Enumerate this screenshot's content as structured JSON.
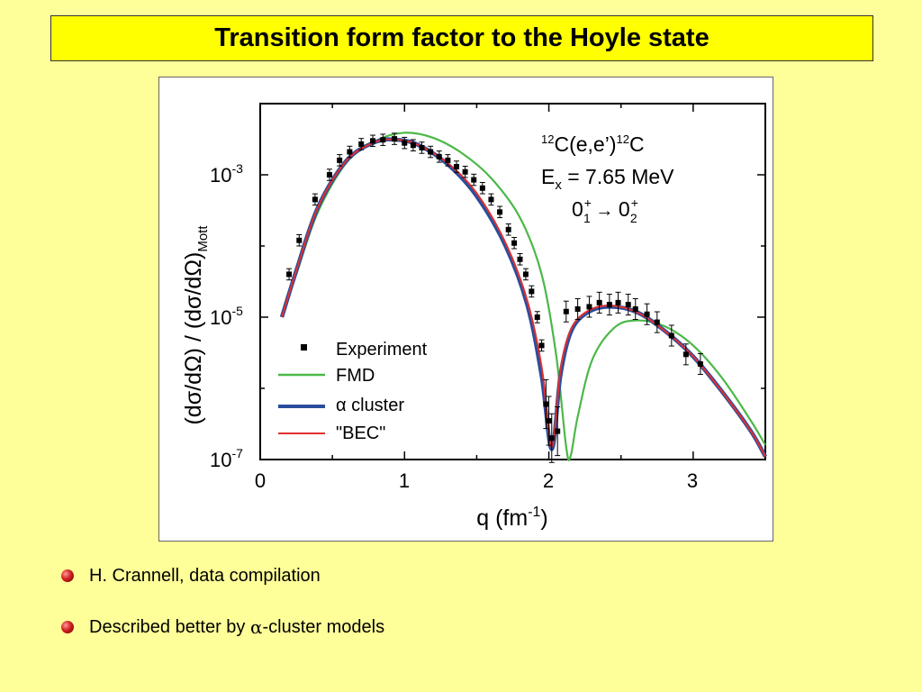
{
  "slide": {
    "title": "Transition form factor to the Hoyle state",
    "bullets": [
      {
        "prefix": "H. Crannell, data compilation",
        "symbol": "",
        "suffix": ""
      },
      {
        "prefix": "Described better by ",
        "symbol": "α",
        "suffix": "-cluster models"
      }
    ]
  },
  "chart_data": {
    "type": "line",
    "xlabel": "q (fm⁻¹)",
    "ylabel": "(dσ/dΩ) / (dσ/dΩ)Mott",
    "xlim": [
      0,
      3.5
    ],
    "ylim": [
      1e-07,
      0.01
    ],
    "yscale": "log",
    "xticks": [
      "0",
      "1",
      "2",
      "3"
    ],
    "yticks": [
      "10-3",
      "10-5",
      "10-7"
    ],
    "annotation": {
      "reaction": "12C(e,e')12C",
      "energy": "Ex = 7.65 MeV",
      "transition": "0+1 → 0+2"
    },
    "legend_position": "bottom-left",
    "colors": {
      "experiment": "#000000",
      "fmd": "#4cb848",
      "alpha": "#2a4d9c",
      "bec": "#e03030"
    },
    "series": [
      {
        "name": "FMD",
        "x": [
          0.15,
          0.25,
          0.4,
          0.6,
          0.8,
          1.0,
          1.2,
          1.4,
          1.6,
          1.8,
          1.95,
          2.05,
          2.12,
          2.15,
          2.2,
          2.3,
          2.45,
          2.6,
          2.8,
          3.0,
          3.2,
          3.4,
          3.5
        ],
        "y": [
          1e-05,
          4e-05,
          0.0003,
          0.0015,
          0.003,
          0.0039,
          0.0033,
          0.002,
          0.0009,
          0.00025,
          4e-05,
          3e-06,
          1.5e-07,
          1.1e-07,
          4e-07,
          2.5e-06,
          7e-06,
          9e-06,
          7.5e-06,
          4e-06,
          1.4e-06,
          3.5e-07,
          1.6e-07
        ]
      },
      {
        "name": "α cluster",
        "x": [
          0.15,
          0.25,
          0.4,
          0.6,
          0.8,
          0.95,
          1.1,
          1.3,
          1.5,
          1.7,
          1.85,
          1.95,
          2.02,
          2.08,
          2.15,
          2.25,
          2.4,
          2.6,
          2.8,
          3.0,
          3.2,
          3.4,
          3.5
        ],
        "y": [
          1e-05,
          4.5e-05,
          0.00035,
          0.0016,
          0.0029,
          0.0031,
          0.0026,
          0.0014,
          0.0005,
          0.0001,
          1.5e-05,
          1.5e-06,
          1.4e-07,
          1.5e-06,
          6e-06,
          1.1e-05,
          1.4e-05,
          1.2e-05,
          6.5e-06,
          2.8e-06,
          9e-07,
          2.5e-07,
          1.1e-07
        ]
      },
      {
        "name": "\"BEC\"",
        "x": [
          0.15,
          0.25,
          0.4,
          0.6,
          0.8,
          0.95,
          1.1,
          1.3,
          1.5,
          1.7,
          1.85,
          1.95,
          2.02,
          2.08,
          2.15,
          2.25,
          2.4,
          2.6,
          2.8,
          3.0,
          3.2,
          3.4,
          3.5
        ],
        "y": [
          1e-05,
          4.5e-05,
          0.00035,
          0.0016,
          0.0029,
          0.0031,
          0.0026,
          0.00145,
          0.00055,
          0.00011,
          1.7e-05,
          2e-06,
          1.5e-07,
          1.8e-06,
          6.5e-06,
          1.15e-05,
          1.45e-05,
          1.2e-05,
          6.5e-06,
          2.8e-06,
          9e-07,
          2.5e-07,
          1.1e-07
        ]
      },
      {
        "name": "Experiment",
        "x": [
          0.2,
          0.27,
          0.38,
          0.48,
          0.55,
          0.62,
          0.7,
          0.78,
          0.85,
          0.93,
          1.0,
          1.06,
          1.12,
          1.18,
          1.24,
          1.3,
          1.36,
          1.42,
          1.48,
          1.54,
          1.6,
          1.66,
          1.72,
          1.76,
          1.8,
          1.84,
          1.88,
          1.92,
          1.95,
          1.98,
          2.0,
          2.02,
          2.06,
          2.12,
          2.2,
          2.28,
          2.35,
          2.42,
          2.48,
          2.55,
          2.6,
          2.68,
          2.75,
          2.85,
          2.95,
          3.05
        ],
        "y": [
          4e-05,
          0.00012,
          0.00045,
          0.001,
          0.0016,
          0.0021,
          0.0027,
          0.003,
          0.0031,
          0.0032,
          0.0028,
          0.0026,
          0.0024,
          0.0021,
          0.0018,
          0.0016,
          0.0013,
          0.0011,
          0.00085,
          0.00065,
          0.00045,
          0.0003,
          0.00017,
          0.00011,
          6.5e-05,
          4e-05,
          2.3e-05,
          1e-05,
          4e-06,
          6e-07,
          3.5e-07,
          2e-07,
          2.5e-07,
          1.2e-05,
          1.3e-05,
          1.4e-05,
          1.6e-05,
          1.5e-05,
          1.6e-05,
          1.5e-05,
          1.3e-05,
          1.1e-05,
          8.5e-06,
          5.5e-06,
          3e-06,
          2.2e-06
        ]
      }
    ],
    "legend": [
      "Experiment",
      "FMD",
      "α cluster",
      "\"BEC\""
    ]
  }
}
